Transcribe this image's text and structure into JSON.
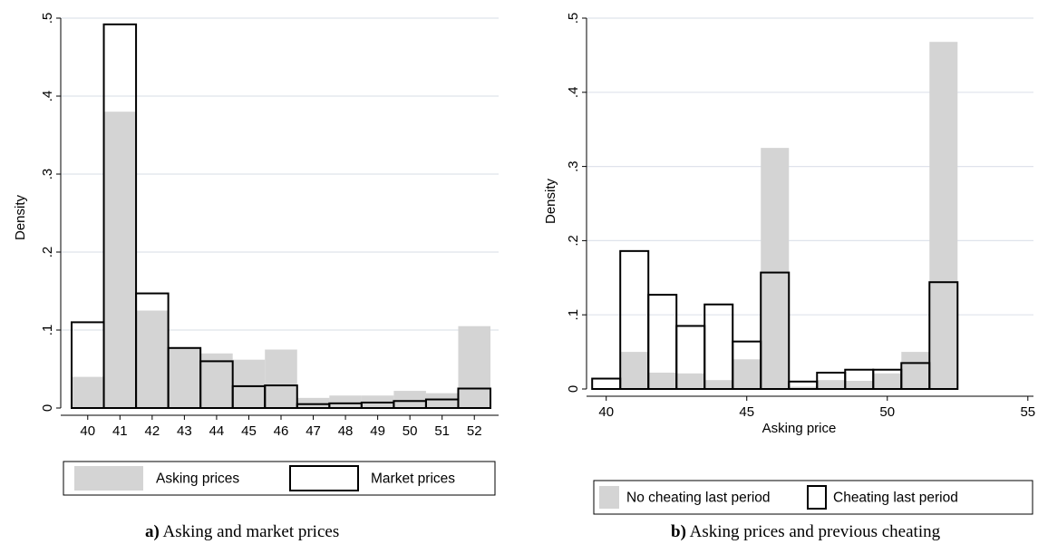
{
  "colors": {
    "asking_fill": "#d4d4d4",
    "grid": "#dfe3eb",
    "outline": "#000000"
  },
  "chart_data": [
    {
      "type": "bar",
      "panel": "a",
      "ylabel": "Density",
      "xlabel": "",
      "ylim": [
        0,
        0.5
      ],
      "yticks": [
        0,
        0.1,
        0.2,
        0.3,
        0.4,
        0.5
      ],
      "ytick_labels": [
        "0",
        ".1",
        ".2",
        ".3",
        ".4",
        ".5"
      ],
      "categories": [
        "40",
        "41",
        "42",
        "43",
        "44",
        "45",
        "46",
        "47",
        "48",
        "49",
        "50",
        "51",
        "52"
      ],
      "grid": true,
      "series": [
        {
          "name": "Asking prices",
          "style": "filled",
          "values": [
            0.04,
            0.38,
            0.125,
            0.077,
            0.07,
            0.062,
            0.075,
            0.013,
            0.016,
            0.016,
            0.022,
            0.019,
            0.105
          ]
        },
        {
          "name": "Market prices",
          "style": "outline",
          "values": [
            0.11,
            0.492,
            0.147,
            0.077,
            0.06,
            0.028,
            0.029,
            0.005,
            0.006,
            0.007,
            0.009,
            0.011,
            0.025
          ]
        }
      ],
      "legend_position": "bottom"
    },
    {
      "type": "bar",
      "panel": "b",
      "ylabel": "Density",
      "xlabel": "Asking price",
      "ylim": [
        0,
        0.5
      ],
      "xlim": [
        39.3,
        55.2
      ],
      "yticks": [
        0,
        0.1,
        0.2,
        0.3,
        0.4,
        0.5
      ],
      "ytick_labels": [
        "0",
        ".1",
        ".2",
        ".3",
        ".4",
        ".5"
      ],
      "xticks": [
        40,
        45,
        50,
        55
      ],
      "xtick_labels": [
        "40",
        "45",
        "50",
        "55"
      ],
      "x": [
        40,
        41,
        42,
        43,
        44,
        45,
        46,
        47,
        48,
        49,
        50,
        51,
        52
      ],
      "bin_width": 1,
      "grid": true,
      "series": [
        {
          "name": "No cheating last period",
          "style": "filled",
          "values": [
            0.0,
            0.05,
            0.022,
            0.021,
            0.012,
            0.04,
            0.325,
            0.003,
            0.012,
            0.011,
            0.021,
            0.05,
            0.468
          ]
        },
        {
          "name": "Cheating last period",
          "style": "outline",
          "values": [
            0.014,
            0.186,
            0.127,
            0.085,
            0.114,
            0.064,
            0.157,
            0.01,
            0.022,
            0.026,
            0.026,
            0.035,
            0.144
          ]
        }
      ],
      "legend_position": "bottom"
    }
  ],
  "captions": [
    {
      "label": "a)",
      "text": " Asking and market prices"
    },
    {
      "label": "b)",
      "text": " Asking prices and previous cheating"
    }
  ]
}
